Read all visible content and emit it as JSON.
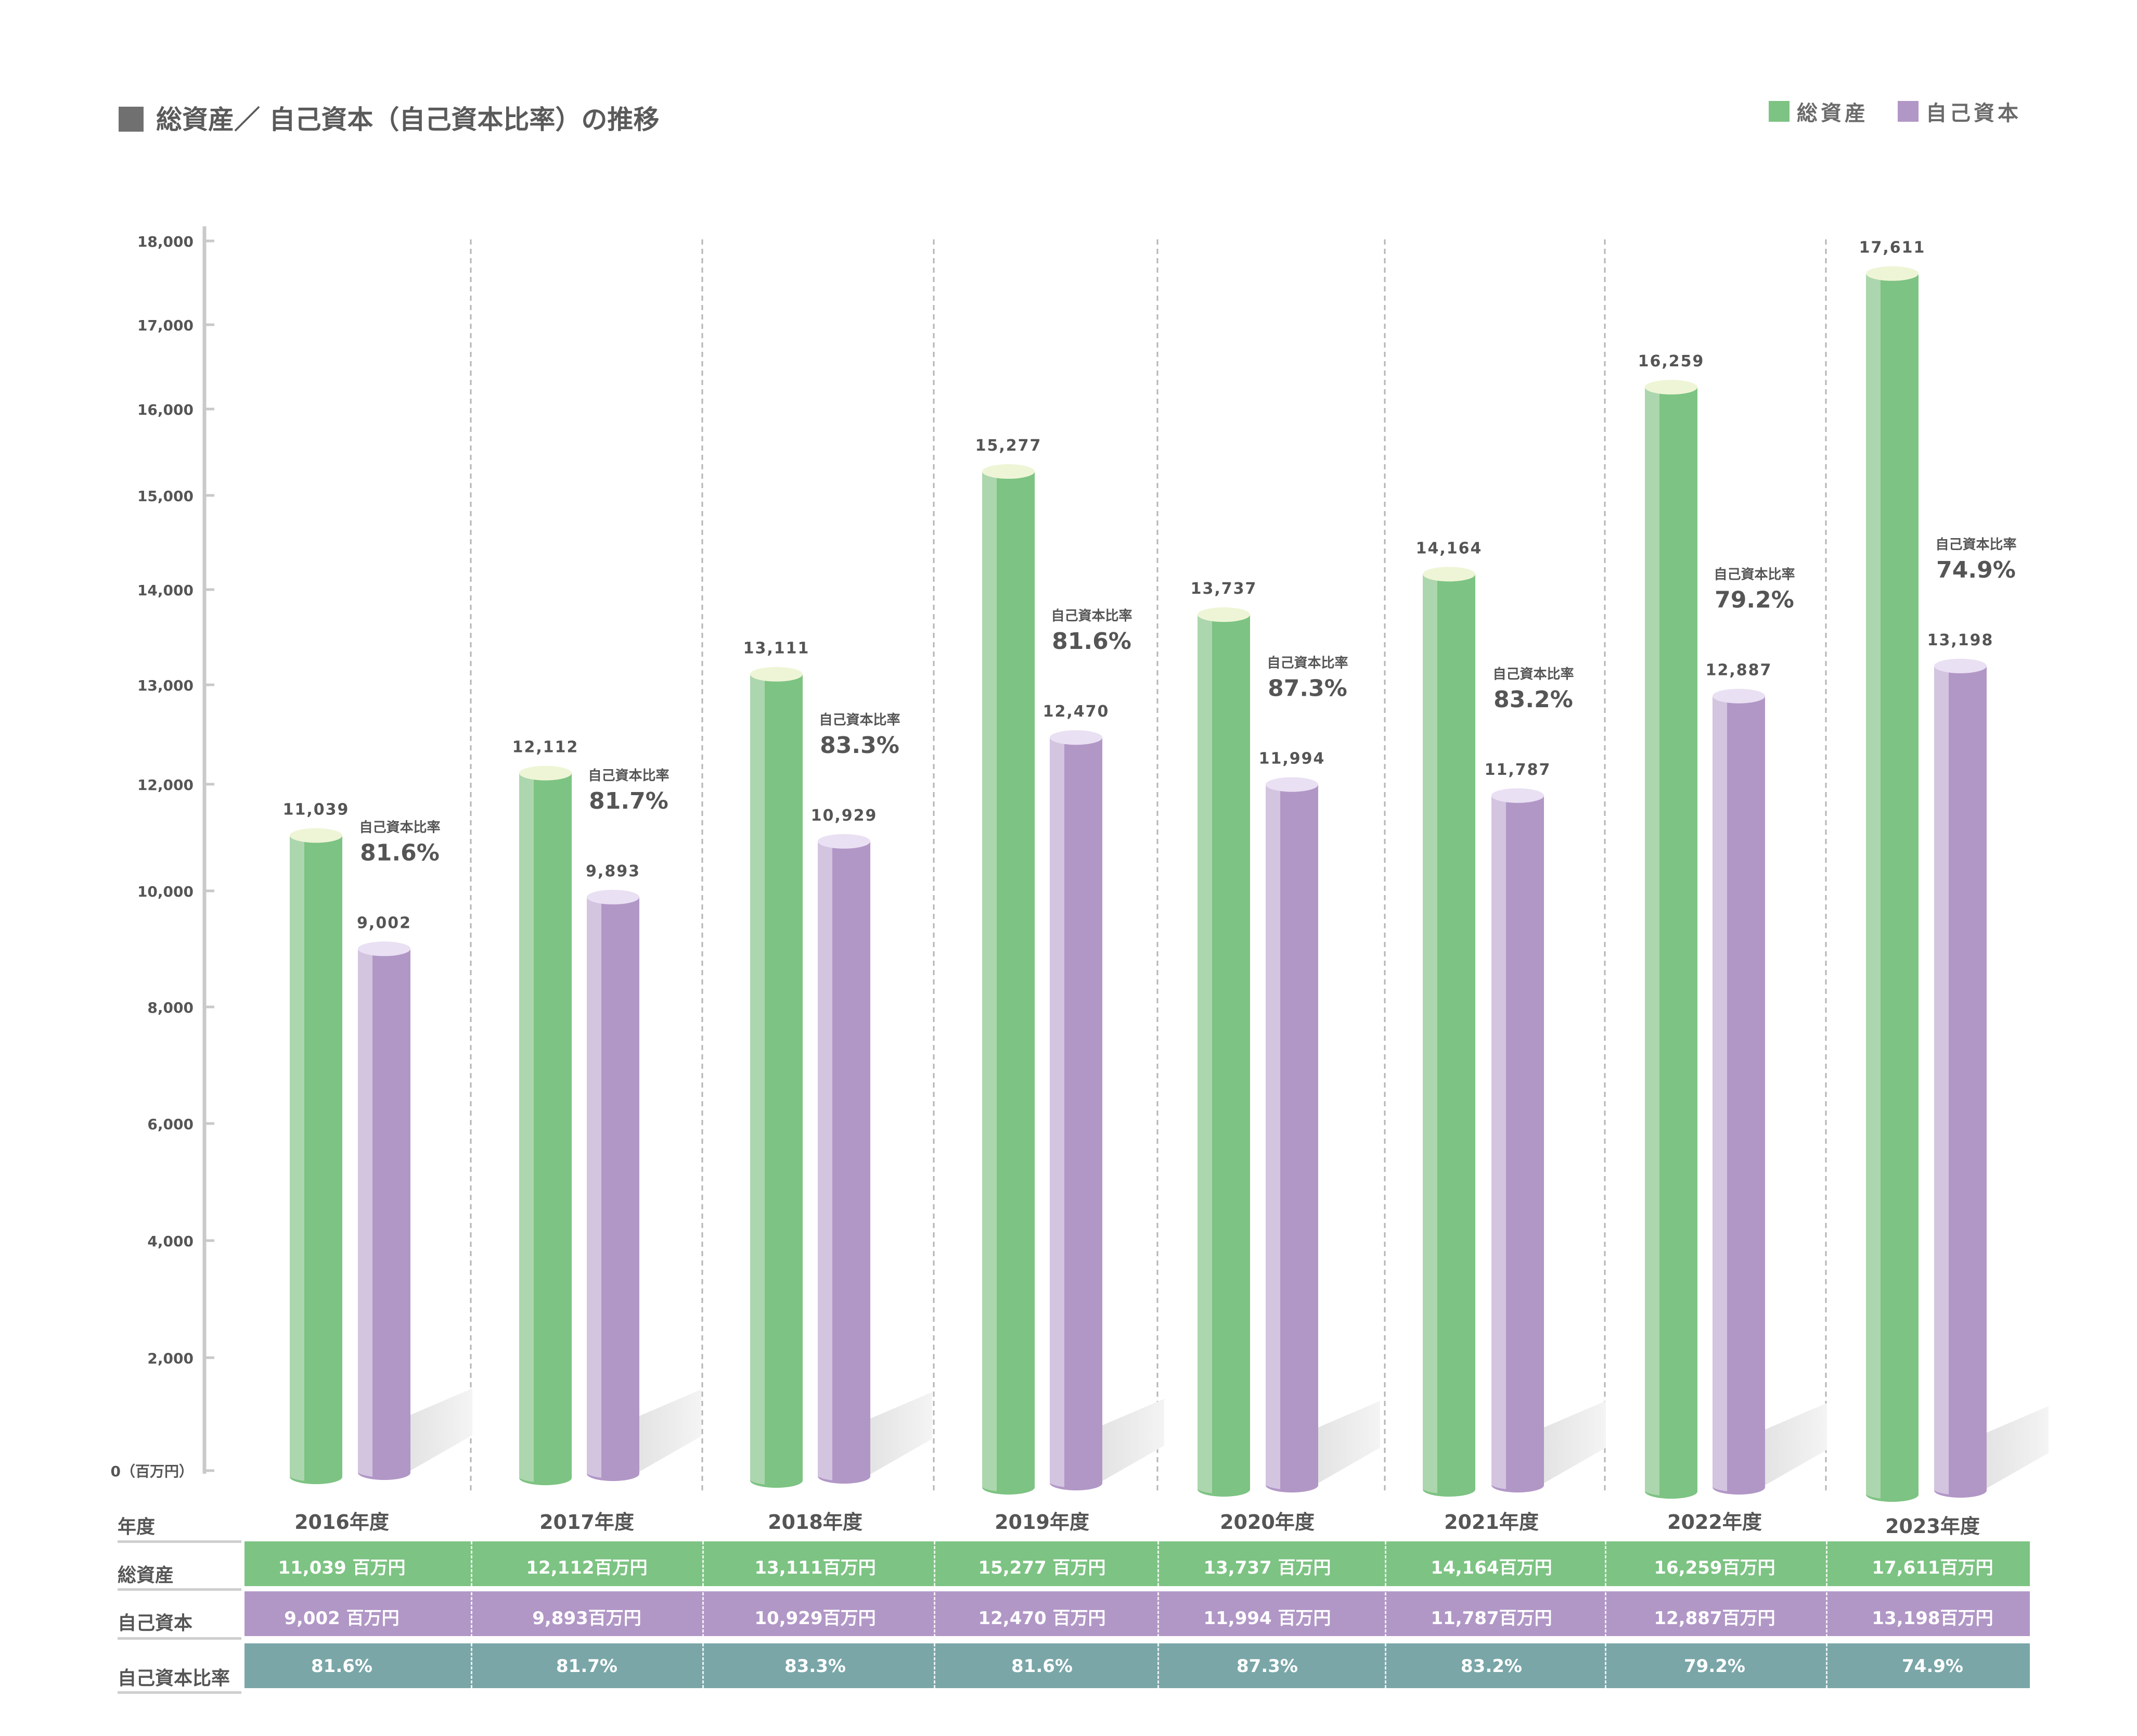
{
  "title": "総資産／ 自己資本（自己資本比率）の推移",
  "legend": [
    {
      "label": "総資産",
      "color": "#7dc383"
    },
    {
      "label": "自己資本",
      "color": "#b197c6"
    }
  ],
  "table": {
    "year_header": "年度",
    "assets_header": "総資産",
    "equity_header": "自己資本",
    "ratio_header": "自己資本比率",
    "assets_color": "#7dc383",
    "equity_color": "#b197c6",
    "ratio_color": "#7aa6a8",
    "cells": [
      {
        "year": "2016年度",
        "assets": "11,039 百万円",
        "equity": "9,002 百万円",
        "ratio": "81.6%"
      },
      {
        "year": "2017年度",
        "assets": "12,112百万円",
        "equity": "9,893百万円",
        "ratio": "81.7%"
      },
      {
        "year": "2018年度",
        "assets": "13,111百万円",
        "equity": "10,929百万円",
        "ratio": "83.3%"
      },
      {
        "year": "2019年度",
        "assets": "15,277 百万円",
        "equity": "12,470 百万円",
        "ratio": "81.6%"
      },
      {
        "year": "2020年度",
        "assets": "13,737 百万円",
        "equity": "11,994 百万円",
        "ratio": "87.3%"
      },
      {
        "year": "2021年度",
        "assets": "14,164百万円",
        "equity": "11,787百万円",
        "ratio": "83.2%"
      },
      {
        "year": "2022年度",
        "assets": "16,259百万円",
        "equity": "12,887百万円",
        "ratio": "79.2%"
      },
      {
        "year": "2023年度",
        "assets": "17,611百万円",
        "equity": "13,198百万円",
        "ratio": "74.9%"
      }
    ]
  },
  "chart_data": {
    "type": "bar",
    "title": "総資産／ 自己資本（自己資本比率）の推移",
    "categories": [
      "2016年度",
      "2017年度",
      "2018年度",
      "2019年度",
      "2020年度",
      "2021年度",
      "2022年度",
      "2023年度"
    ],
    "series": [
      {
        "name": "総資産",
        "values": [
          11039,
          12112,
          13111,
          15277,
          13737,
          14164,
          16259,
          17611
        ],
        "labels": [
          "11,039",
          "12,112",
          "13,111",
          "15,277",
          "13,737",
          "14,164",
          "16,259",
          "17,611"
        ],
        "color": "#7dc383"
      },
      {
        "name": "自己資本",
        "values": [
          9002,
          9893,
          10929,
          12470,
          11994,
          11787,
          12887,
          13198
        ],
        "labels": [
          "9,002",
          "9,893",
          "10,929",
          "12,470",
          "11,994",
          "11,787",
          "12,887",
          "13,198"
        ],
        "color": "#b197c6"
      }
    ],
    "ratio": {
      "label": "自己資本比率",
      "values": [
        "81.6%",
        "81.7%",
        "83.3%",
        "81.6%",
        "87.3%",
        "83.2%",
        "79.2%",
        "74.9%"
      ]
    },
    "yaxis": {
      "ticks": [
        0,
        2000,
        4000,
        6000,
        8000,
        10000,
        12000,
        13000,
        14000,
        15000,
        16000,
        17000,
        18000
      ],
      "tick_labels": [
        "0（百万円）",
        "2,000",
        "4,000",
        "6,000",
        "8,000",
        "10,000",
        "12,000",
        "13,000",
        "14,000",
        "15,000",
        "16,000",
        "17,000",
        "18,000"
      ],
      "ylim": [
        0,
        18000
      ]
    },
    "grid": false,
    "legend_position": "top-right"
  }
}
